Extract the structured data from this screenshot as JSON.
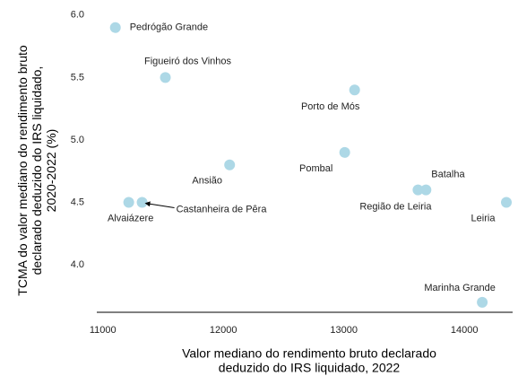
{
  "chart_data": {
    "type": "scatter",
    "xlabel": [
      "Valor mediano do rendimento bruto declarado",
      "deduzido do IRS liquidado, 2022"
    ],
    "ylabel": [
      "TCMA do valor mediano do rendimento bruto",
      "declarado deduzido do IRS liquidado,",
      "2020-2022 (%)"
    ],
    "labels": [
      "Pedrógão Grande",
      "Figueiró dos Vinhos",
      "Porto de Mós",
      "Ansião",
      "Pombal",
      "Região de Leiria",
      "Batalha",
      "Alvaiázere",
      "Castanheira de Pêra",
      "Leiria",
      "Marinha Grande"
    ],
    "x": [
      11104,
      11519,
      13089,
      12052,
      13007,
      13615,
      13681,
      11215,
      11326,
      14348,
      14148
    ],
    "y": [
      5.9,
      5.5,
      5.4,
      4.8,
      4.9,
      4.6,
      4.6,
      4.5,
      4.5,
      4.5,
      3.7
    ],
    "color": "#add8e6",
    "xlim": [
      10950,
      14400
    ],
    "ylim": [
      3.62,
      6.02
    ],
    "xticks": [
      11000,
      12000,
      13000,
      14000
    ],
    "yticks": [
      {
        "value": 4,
        "label": "4.0"
      },
      {
        "value": 4.5,
        "label": "4.5"
      },
      {
        "value": 5,
        "label": "5.0"
      },
      {
        "value": 5.5,
        "label": "5.5"
      },
      {
        "value": 6,
        "label": "6.0"
      }
    ],
    "grid": false
  }
}
